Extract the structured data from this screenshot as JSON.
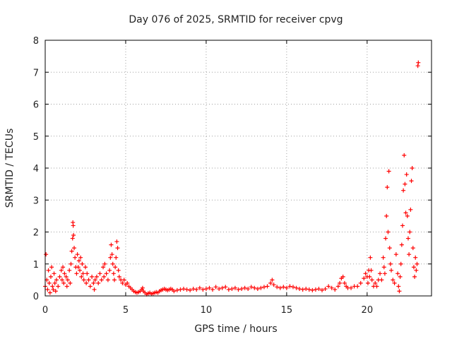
{
  "chart_data": {
    "type": "scatter",
    "title": "Day 076 of 2025, SRMTID for receiver cpvg",
    "xlabel": "GPS time / hours",
    "ylabel": "SRMTID / TECUs",
    "xlim": [
      0,
      24
    ],
    "ylim": [
      0,
      8
    ],
    "xticks": [
      0,
      5,
      10,
      15,
      20
    ],
    "yticks": [
      0,
      1,
      2,
      3,
      4,
      5,
      6,
      7,
      8
    ],
    "grid": true,
    "marker": "+",
    "color": "#ff0000",
    "series": [
      {
        "name": "SRMTID",
        "points": [
          [
            0.0,
            0.3
          ],
          [
            0.05,
            1.3
          ],
          [
            0.1,
            0.5
          ],
          [
            0.15,
            0.2
          ],
          [
            0.2,
            0.8
          ],
          [
            0.25,
            0.4
          ],
          [
            0.3,
            0.1
          ],
          [
            0.35,
            0.6
          ],
          [
            0.4,
            0.9
          ],
          [
            0.45,
            0.3
          ],
          [
            0.5,
            0.2
          ],
          [
            0.55,
            0.7
          ],
          [
            0.6,
            0.4
          ],
          [
            0.65,
            0.15
          ],
          [
            0.7,
            0.5
          ],
          [
            0.8,
            0.3
          ],
          [
            0.9,
            0.6
          ],
          [
            1.0,
            0.8
          ],
          [
            1.05,
            0.5
          ],
          [
            1.1,
            0.9
          ],
          [
            1.15,
            0.4
          ],
          [
            1.2,
            0.7
          ],
          [
            1.3,
            0.6
          ],
          [
            1.35,
            0.3
          ],
          [
            1.4,
            0.5
          ],
          [
            1.5,
            0.8
          ],
          [
            1.55,
            0.4
          ],
          [
            1.6,
            1.0
          ],
          [
            1.65,
            1.4
          ],
          [
            1.7,
            1.8
          ],
          [
            1.72,
            2.3
          ],
          [
            1.74,
            2.2
          ],
          [
            1.76,
            1.9
          ],
          [
            1.8,
            1.5
          ],
          [
            1.85,
            1.2
          ],
          [
            1.9,
            0.9
          ],
          [
            1.95,
            0.7
          ],
          [
            2.0,
            1.3
          ],
          [
            2.05,
            0.9
          ],
          [
            2.1,
            1.1
          ],
          [
            2.15,
            0.8
          ],
          [
            2.2,
            1.2
          ],
          [
            2.25,
            0.6
          ],
          [
            2.3,
            1.0
          ],
          [
            2.35,
            0.7
          ],
          [
            2.4,
            0.5
          ],
          [
            2.5,
            0.9
          ],
          [
            2.55,
            0.4
          ],
          [
            2.6,
            0.7
          ],
          [
            2.7,
            0.5
          ],
          [
            2.8,
            0.3
          ],
          [
            2.9,
            0.6
          ],
          [
            3.0,
            0.4
          ],
          [
            3.05,
            0.2
          ],
          [
            3.1,
            0.5
          ],
          [
            3.2,
            0.6
          ],
          [
            3.3,
            0.4
          ],
          [
            3.4,
            0.7
          ],
          [
            3.5,
            0.5
          ],
          [
            3.6,
            0.9
          ],
          [
            3.65,
            0.6
          ],
          [
            3.7,
            1.0
          ],
          [
            3.8,
            0.7
          ],
          [
            3.9,
            0.5
          ],
          [
            4.0,
            0.8
          ],
          [
            4.05,
            1.2
          ],
          [
            4.1,
            1.6
          ],
          [
            4.15,
            1.3
          ],
          [
            4.2,
            1.0
          ],
          [
            4.25,
            0.7
          ],
          [
            4.3,
            0.5
          ],
          [
            4.35,
            0.9
          ],
          [
            4.4,
            1.2
          ],
          [
            4.45,
            1.7
          ],
          [
            4.5,
            1.5
          ],
          [
            4.55,
            0.8
          ],
          [
            4.6,
            0.6
          ],
          [
            4.7,
            0.5
          ],
          [
            4.8,
            0.4
          ],
          [
            4.9,
            0.5
          ],
          [
            5.0,
            0.35
          ],
          [
            5.1,
            0.4
          ],
          [
            5.2,
            0.3
          ],
          [
            5.3,
            0.25
          ],
          [
            5.4,
            0.2
          ],
          [
            5.5,
            0.15
          ],
          [
            5.6,
            0.12
          ],
          [
            5.7,
            0.1
          ],
          [
            5.8,
            0.12
          ],
          [
            5.9,
            0.15
          ],
          [
            6.0,
            0.2
          ],
          [
            6.05,
            0.25
          ],
          [
            6.1,
            0.15
          ],
          [
            6.2,
            0.1
          ],
          [
            6.3,
            0.05
          ],
          [
            6.4,
            0.08
          ],
          [
            6.5,
            0.1
          ],
          [
            6.6,
            0.06
          ],
          [
            6.7,
            0.08
          ],
          [
            6.8,
            0.1
          ],
          [
            6.9,
            0.12
          ],
          [
            7.0,
            0.1
          ],
          [
            7.1,
            0.15
          ],
          [
            7.2,
            0.18
          ],
          [
            7.3,
            0.2
          ],
          [
            7.4,
            0.22
          ],
          [
            7.5,
            0.2
          ],
          [
            7.6,
            0.18
          ],
          [
            7.7,
            0.2
          ],
          [
            7.8,
            0.22
          ],
          [
            7.9,
            0.2
          ],
          [
            8.0,
            0.15
          ],
          [
            8.2,
            0.18
          ],
          [
            8.4,
            0.2
          ],
          [
            8.6,
            0.22
          ],
          [
            8.8,
            0.2
          ],
          [
            9.0,
            0.18
          ],
          [
            9.2,
            0.22
          ],
          [
            9.4,
            0.2
          ],
          [
            9.6,
            0.25
          ],
          [
            9.8,
            0.2
          ],
          [
            10.0,
            0.22
          ],
          [
            10.2,
            0.25
          ],
          [
            10.4,
            0.2
          ],
          [
            10.6,
            0.28
          ],
          [
            10.8,
            0.22
          ],
          [
            11.0,
            0.25
          ],
          [
            11.2,
            0.28
          ],
          [
            11.4,
            0.2
          ],
          [
            11.6,
            0.22
          ],
          [
            11.8,
            0.25
          ],
          [
            12.0,
            0.2
          ],
          [
            12.2,
            0.22
          ],
          [
            12.4,
            0.25
          ],
          [
            12.6,
            0.22
          ],
          [
            12.8,
            0.28
          ],
          [
            13.0,
            0.25
          ],
          [
            13.2,
            0.22
          ],
          [
            13.4,
            0.25
          ],
          [
            13.6,
            0.28
          ],
          [
            13.8,
            0.3
          ],
          [
            14.0,
            0.4
          ],
          [
            14.1,
            0.5
          ],
          [
            14.2,
            0.35
          ],
          [
            14.4,
            0.28
          ],
          [
            14.6,
            0.25
          ],
          [
            14.8,
            0.28
          ],
          [
            15.0,
            0.25
          ],
          [
            15.2,
            0.3
          ],
          [
            15.4,
            0.28
          ],
          [
            15.6,
            0.25
          ],
          [
            15.8,
            0.22
          ],
          [
            16.0,
            0.2
          ],
          [
            16.2,
            0.22
          ],
          [
            16.4,
            0.2
          ],
          [
            16.6,
            0.18
          ],
          [
            16.8,
            0.2
          ],
          [
            17.0,
            0.22
          ],
          [
            17.2,
            0.18
          ],
          [
            17.4,
            0.22
          ],
          [
            17.6,
            0.3
          ],
          [
            17.8,
            0.25
          ],
          [
            18.0,
            0.2
          ],
          [
            18.2,
            0.3
          ],
          [
            18.3,
            0.4
          ],
          [
            18.4,
            0.55
          ],
          [
            18.5,
            0.6
          ],
          [
            18.6,
            0.4
          ],
          [
            18.7,
            0.3
          ],
          [
            18.8,
            0.25
          ],
          [
            19.0,
            0.25
          ],
          [
            19.2,
            0.3
          ],
          [
            19.4,
            0.3
          ],
          [
            19.6,
            0.4
          ],
          [
            19.8,
            0.55
          ],
          [
            19.9,
            0.7
          ],
          [
            20.0,
            0.6
          ],
          [
            20.05,
            0.4
          ],
          [
            20.1,
            0.8
          ],
          [
            20.15,
            0.6
          ],
          [
            20.2,
            1.2
          ],
          [
            20.25,
            0.8
          ],
          [
            20.3,
            0.5
          ],
          [
            20.4,
            0.3
          ],
          [
            20.5,
            0.4
          ],
          [
            20.6,
            0.3
          ],
          [
            20.7,
            0.5
          ],
          [
            20.8,
            0.7
          ],
          [
            20.9,
            0.5
          ],
          [
            21.0,
            1.2
          ],
          [
            21.05,
            0.9
          ],
          [
            21.1,
            0.7
          ],
          [
            21.15,
            1.8
          ],
          [
            21.2,
            2.5
          ],
          [
            21.25,
            3.4
          ],
          [
            21.3,
            2.0
          ],
          [
            21.35,
            3.9
          ],
          [
            21.4,
            1.5
          ],
          [
            21.45,
            1.0
          ],
          [
            21.5,
            0.8
          ],
          [
            21.6,
            0.5
          ],
          [
            21.7,
            0.4
          ],
          [
            21.8,
            1.3
          ],
          [
            21.9,
            0.7
          ],
          [
            21.95,
            0.3
          ],
          [
            22.0,
            0.15
          ],
          [
            22.05,
            0.6
          ],
          [
            22.1,
            1.0
          ],
          [
            22.15,
            1.6
          ],
          [
            22.2,
            2.2
          ],
          [
            22.25,
            3.3
          ],
          [
            22.3,
            4.4
          ],
          [
            22.35,
            3.5
          ],
          [
            22.4,
            2.6
          ],
          [
            22.45,
            3.8
          ],
          [
            22.5,
            2.5
          ],
          [
            22.55,
            1.8
          ],
          [
            22.6,
            1.3
          ],
          [
            22.65,
            2.0
          ],
          [
            22.7,
            2.7
          ],
          [
            22.75,
            3.6
          ],
          [
            22.8,
            4.0
          ],
          [
            22.85,
            1.5
          ],
          [
            22.9,
            0.9
          ],
          [
            22.95,
            0.6
          ],
          [
            23.0,
            1.2
          ],
          [
            23.05,
            0.8
          ],
          [
            23.1,
            1.0
          ],
          [
            23.15,
            7.2
          ],
          [
            23.18,
            7.3
          ]
        ]
      }
    ]
  }
}
